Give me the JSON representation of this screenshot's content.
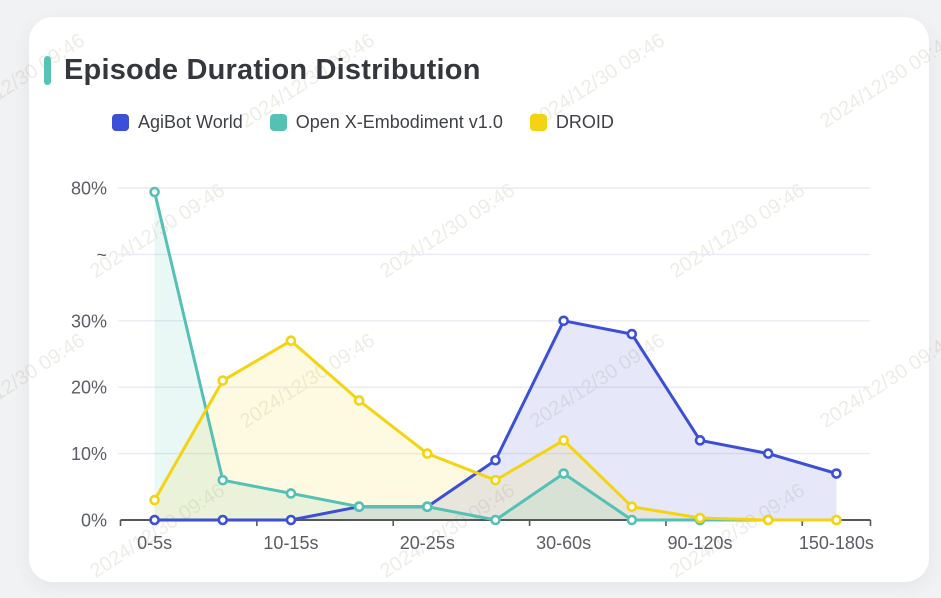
{
  "page": {
    "title": "Episode Duration Distribution"
  },
  "watermark": {
    "text": "2024/12/30 09:46"
  },
  "colors": {
    "accent": "#57C2B6",
    "page_bg": "#f1f2f4",
    "card_bg": "#ffffff",
    "axis": "#55575c",
    "grid": "#e9ebf3",
    "tick_label": "#5a5d63",
    "title_text": "#34373c"
  },
  "chart_data": {
    "type": "line",
    "title": "Episode Duration Distribution",
    "categories": [
      "0-5s",
      "",
      "10-15s",
      "",
      "20-25s",
      "",
      "30-60s",
      "",
      "90-120s",
      "",
      "150-180s"
    ],
    "visible_x_labels": [
      "0-5s",
      "10-15s",
      "20-25s",
      "30-60s",
      "90-120s",
      "150-180s"
    ],
    "xlabel": "",
    "ylabel": "",
    "y_axis": {
      "ticks": [
        "0%",
        "10%",
        "20%",
        "30%",
        "~",
        "80%"
      ],
      "tick_values": [
        0,
        10,
        20,
        30,
        "break",
        80
      ],
      "axis_break": true,
      "unit": "%"
    },
    "grid": true,
    "legend_position": "top",
    "marker": "hollow-circle",
    "series": [
      {
        "name": "AgiBot World",
        "color": "#3C4FD6",
        "area_opacity": 0.13,
        "values": [
          0,
          0,
          0,
          2,
          2,
          9,
          30,
          28,
          12,
          10,
          7
        ]
      },
      {
        "name": "Open X-Embodiment v1.0",
        "color": "#55C1B5",
        "area_opacity": 0.13,
        "values": [
          79.5,
          6,
          4,
          2,
          2,
          0,
          7,
          0,
          0,
          0,
          0
        ]
      },
      {
        "name": "DROID",
        "color": "#F4D412",
        "area_opacity": 0.12,
        "values": [
          3,
          21,
          27,
          18,
          10,
          6,
          12,
          2,
          0.3,
          0,
          0
        ]
      }
    ]
  }
}
